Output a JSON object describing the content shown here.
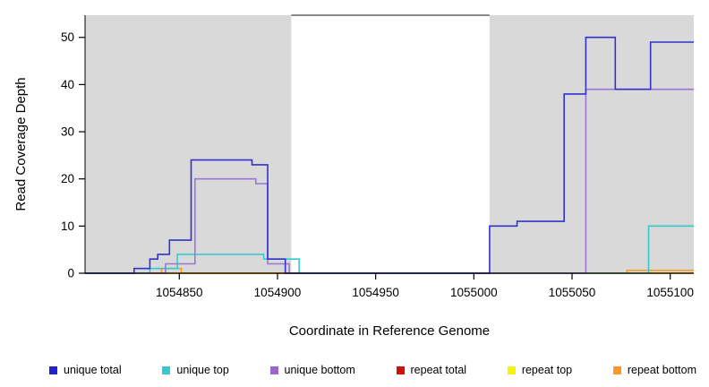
{
  "chart_data": {
    "type": "line",
    "step": true,
    "title": "",
    "xlabel": "Coordinate in Reference Genome",
    "ylabel": "Read Coverage Depth",
    "xlim": [
      1054802,
      1055112
    ],
    "ylim": [
      0,
      54.7
    ],
    "x_ticks": [
      1054850,
      1054900,
      1054950,
      1055000,
      1055050,
      1055100
    ],
    "y_ticks": [
      0,
      10,
      20,
      30,
      40,
      50
    ],
    "grid": false,
    "shade_color": "#d9d9d9",
    "shaded_regions": [
      [
        1054802,
        1054907
      ],
      [
        1055008,
        1055112
      ]
    ],
    "top_border_segment": [
      1054907,
      1055008
    ],
    "series": [
      {
        "name": "repeat total",
        "color": "#cc1111",
        "points": [
          [
            1054802,
            0
          ]
        ]
      },
      {
        "name": "repeat top",
        "color": "#f5f50a",
        "points": [
          [
            1054802,
            0
          ]
        ]
      },
      {
        "name": "repeat bottom",
        "color": "#ff9922",
        "points": [
          [
            1054802,
            0
          ],
          [
            1054841,
            1
          ],
          [
            1054851,
            0
          ],
          [
            1055078,
            0.6
          ]
        ]
      },
      {
        "name": "unique top",
        "color": "#33cccc",
        "points": [
          [
            1054802,
            0
          ],
          [
            1054835,
            1
          ],
          [
            1054849,
            4
          ],
          [
            1054893,
            3
          ],
          [
            1054911,
            0
          ],
          [
            1055089,
            10
          ]
        ]
      },
      {
        "name": "unique bottom",
        "color": "#9a77d6",
        "points": [
          [
            1054802,
            0
          ],
          [
            1054843,
            2
          ],
          [
            1054858,
            20
          ],
          [
            1054889,
            19
          ],
          [
            1054895,
            2
          ],
          [
            1054906,
            0
          ],
          [
            1055057,
            39
          ]
        ]
      },
      {
        "name": "unique total",
        "color": "#3333cc",
        "points": [
          [
            1054802,
            0
          ],
          [
            1054827,
            1
          ],
          [
            1054835,
            3
          ],
          [
            1054839,
            4
          ],
          [
            1054845,
            7
          ],
          [
            1054856,
            24
          ],
          [
            1054887,
            23
          ],
          [
            1054895,
            3
          ],
          [
            1054904,
            0
          ],
          [
            1055008,
            10
          ],
          [
            1055022,
            11
          ],
          [
            1055046,
            38
          ],
          [
            1055057,
            50
          ],
          [
            1055072,
            39
          ],
          [
            1055090,
            49
          ]
        ]
      }
    ],
    "legend": [
      {
        "label": "unique total",
        "color": "#2222cc"
      },
      {
        "label": "unique top",
        "color": "#33cccc"
      },
      {
        "label": "unique bottom",
        "color": "#9966cc"
      },
      {
        "label": "repeat total",
        "color": "#cc1111"
      },
      {
        "label": "repeat top",
        "color": "#f5f50a"
      },
      {
        "label": "repeat bottom",
        "color": "#ff9922"
      }
    ],
    "legend_position": "bottom"
  }
}
